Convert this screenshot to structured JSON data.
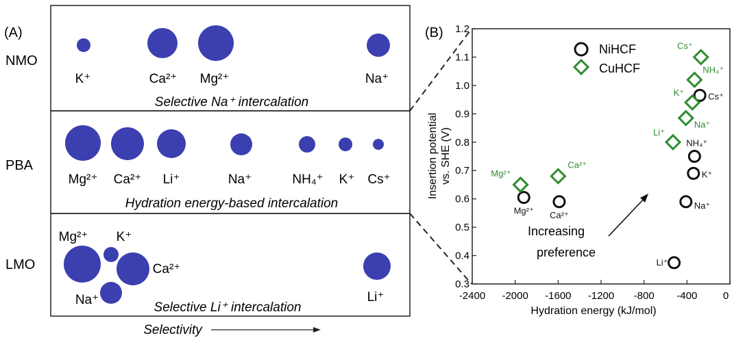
{
  "panel_a": {
    "label": "(A)",
    "sphere_color": "#3b3fb0",
    "rows": [
      {
        "name": "NMO",
        "caption": "Selective Na⁺ intercalation",
        "ions": [
          {
            "label": "K⁺",
            "size": "small"
          },
          {
            "label": "Ca²⁺",
            "size": "large"
          },
          {
            "label": "Mg²⁺",
            "size": "xlarge"
          },
          {
            "label": "Na⁺",
            "size": "medium"
          }
        ]
      },
      {
        "name": "PBA",
        "caption": "Hydration energy-based intercalation",
        "ions": [
          {
            "label": "Mg²⁺",
            "size": "xlarge"
          },
          {
            "label": "Ca²⁺",
            "size": "xlarge"
          },
          {
            "label": "Li⁺",
            "size": "large"
          },
          {
            "label": "Na⁺",
            "size": "medium"
          },
          {
            "label": "NH₄⁺",
            "size": "small"
          },
          {
            "label": "K⁺",
            "size": "small"
          },
          {
            "label": "Cs⁺",
            "size": "xsmall"
          }
        ]
      },
      {
        "name": "LMO",
        "caption": "Selective Li⁺ intercalation",
        "ions": [
          {
            "label": "Mg²⁺",
            "size": "xlarge"
          },
          {
            "label": "K⁺",
            "size": "small"
          },
          {
            "label": "Ca²⁺",
            "size": "xlarge"
          },
          {
            "label": "Na⁺",
            "size": "large"
          },
          {
            "label": "Li⁺",
            "size": "medium"
          }
        ]
      }
    ],
    "axis_label": "Selectivity"
  },
  "chart_data": {
    "type": "scatter",
    "panel_label": "(B)",
    "xlabel": "Hydration energy (kJ/mol)",
    "ylabel_line1": "Insertion potential",
    "ylabel_line2": "vs. SHE (V)",
    "xlim": [
      -2400,
      0
    ],
    "ylim": [
      0.3,
      1.2
    ],
    "x_ticks": [
      -2400,
      -2000,
      -1600,
      -1200,
      -800,
      -400,
      0
    ],
    "y_ticks": [
      0.3,
      0.4,
      0.5,
      0.6,
      0.7,
      0.8,
      0.9,
      1.0,
      1.1,
      1.2
    ],
    "legend_position": "top-right",
    "series": [
      {
        "name": "NiHCF",
        "marker": "circle",
        "color": "#111111",
        "points": [
          {
            "label": "Mg²⁺",
            "x": -1920,
            "y": 0.605
          },
          {
            "label": "Ca²⁺",
            "x": -1590,
            "y": 0.59
          },
          {
            "label": "Li⁺",
            "x": -520,
            "y": 0.375
          },
          {
            "label": "Na⁺",
            "x": -410,
            "y": 0.59
          },
          {
            "label": "K⁺",
            "x": -340,
            "y": 0.69
          },
          {
            "label": "NH₄⁺",
            "x": -330,
            "y": 0.75
          },
          {
            "label": "Cs⁺",
            "x": -280,
            "y": 0.965
          }
        ]
      },
      {
        "name": "CuHCF",
        "marker": "diamond",
        "color": "#2e8b2e",
        "points": [
          {
            "label": "Mg²⁺",
            "x": -1950,
            "y": 0.65
          },
          {
            "label": "Ca²⁺",
            "x": -1600,
            "y": 0.68
          },
          {
            "label": "Li⁺",
            "x": -530,
            "y": 0.8
          },
          {
            "label": "Na⁺",
            "x": -410,
            "y": 0.885
          },
          {
            "label": "K⁺",
            "x": -350,
            "y": 0.94
          },
          {
            "label": "NH₄⁺",
            "x": -330,
            "y": 1.02
          },
          {
            "label": "Cs⁺",
            "x": -270,
            "y": 1.1
          }
        ]
      }
    ],
    "annotation": {
      "line1": "Increasing",
      "line2": "preference"
    }
  }
}
